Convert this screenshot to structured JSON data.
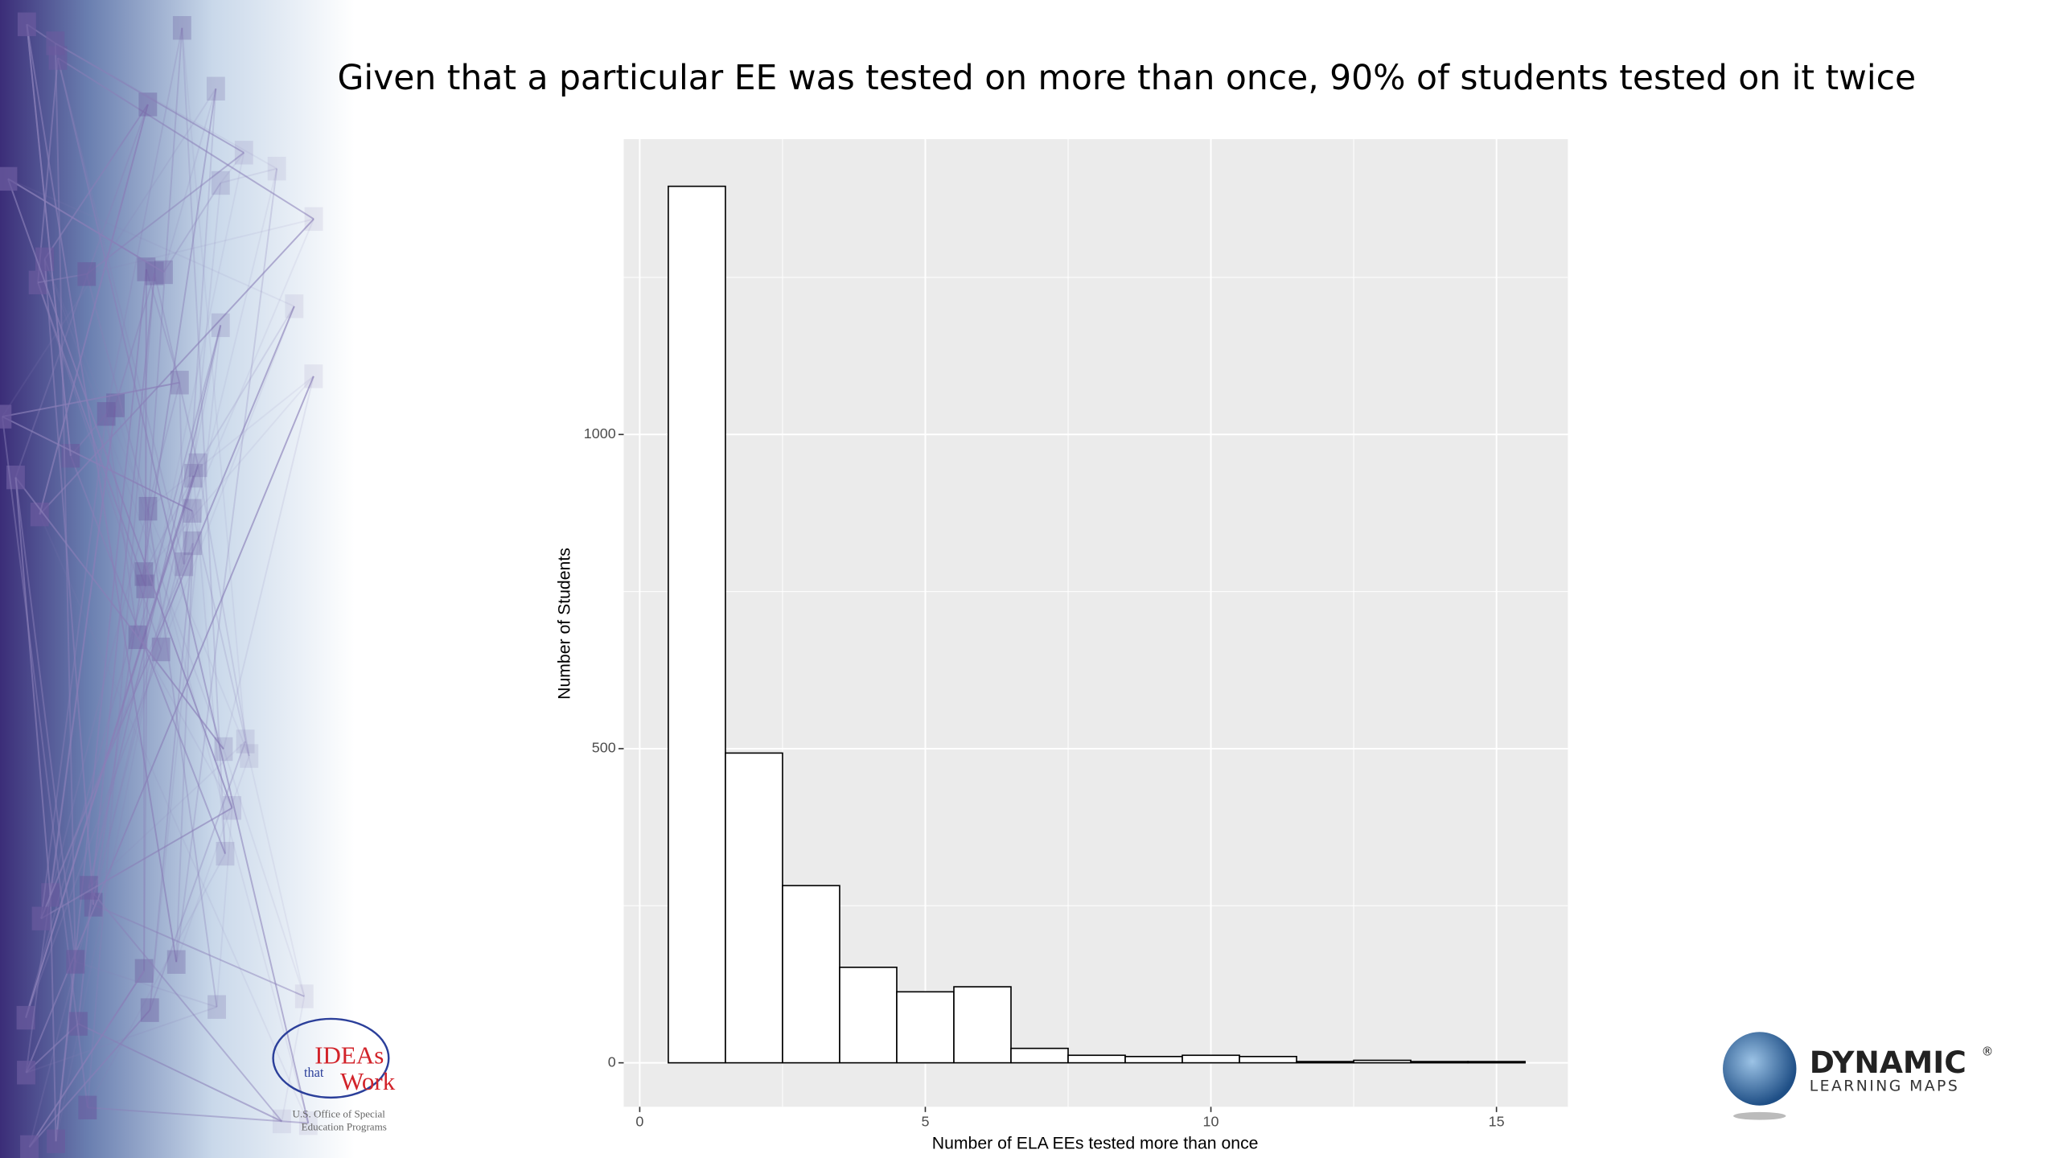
{
  "chart_data": {
    "type": "histogram",
    "title": "Given that a particular EE was tested on more than once, 90% of students tested on it twice",
    "x_label": "Number of ELA EEs tested more than once",
    "y_label": "Number of Students",
    "bins": [
      0.5,
      1.5,
      2.5,
      3.5,
      4.5,
      5.5,
      6.5,
      7.5,
      8.5,
      9.5,
      10.5,
      11.5,
      12.5,
      13.5,
      14.5,
      15.5
    ],
    "values": [
      1395,
      493,
      282,
      152,
      113,
      121,
      23,
      12,
      10,
      12,
      10,
      2,
      4,
      2,
      2
    ],
    "color": "#ffffff",
    "xlim": [
      -0.28,
      16.25
    ],
    "xticks": [
      0,
      5,
      10,
      15
    ],
    "xminor": [
      2.5,
      7.5,
      12.5
    ],
    "ylim": [
      -70,
      1470
    ],
    "yticks": [
      0,
      500,
      1000
    ],
    "yminor": [
      250,
      750,
      1250
    ],
    "grid": true
  },
  "logos": {
    "ideas": [
      "IDEAs",
      "that",
      "Work",
      "U.S. Office of Special",
      "Education Programs"
    ],
    "dlm": [
      "DYNAMIC",
      "®",
      "LEARNING MAPS"
    ]
  }
}
